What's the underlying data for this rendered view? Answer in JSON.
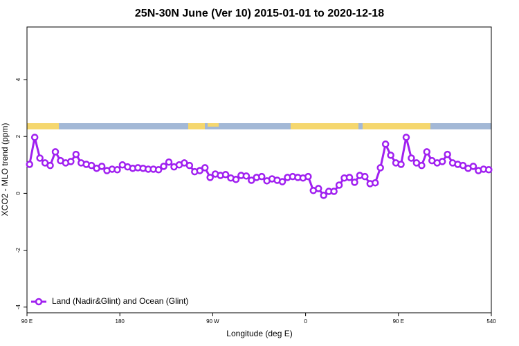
{
  "chart_data": {
    "type": "line",
    "title": "25N-30N June (Ver 10)   2015-01-01 to 2020-12-18",
    "x_label": "Longitude (deg E)",
    "y_label": "XCO2 - MLO trend (ppm)",
    "xlim": [
      90,
      540
    ],
    "ylim": [
      -4.2,
      5.85
    ],
    "xticks": [
      {
        "value": 90,
        "label": "90 E"
      },
      180,
      {
        "value": 270,
        "label": "90 W"
      },
      {
        "value": 360,
        "label": "0"
      },
      {
        "value": 450,
        "label": "90 E"
      },
      540
    ],
    "yticks": [
      -4,
      -2,
      0,
      2,
      4
    ],
    "legend_position": "bottom-left",
    "series": [
      {
        "name": "Land (Nadir&Glint) and Ocean (Glint)",
        "color": "#a020f0",
        "x": [
          92.5,
          97.5,
          102.5,
          107.5,
          112.5,
          117.5,
          122.5,
          127.5,
          132.5,
          137.5,
          142.5,
          147.5,
          152.5,
          157.5,
          162.5,
          167.5,
          172.5,
          177.5,
          182.5,
          187.5,
          192.5,
          197.5,
          202.5,
          207.5,
          212.5,
          217.5,
          222.5,
          227.5,
          232.5,
          237.5,
          242.5,
          247.5,
          252.5,
          257.5,
          262.5,
          267.5,
          272.5,
          277.5,
          282.5,
          287.5,
          292.5,
          297.5,
          302.5,
          307.5,
          312.5,
          317.5,
          322.5,
          327.5,
          332.5,
          337.5,
          342.5,
          347.5,
          352.5,
          357.5,
          362.5,
          367.5,
          372.5,
          377.5,
          382.5,
          387.5,
          392.5,
          397.5,
          402.5,
          407.5,
          412.5,
          417.5,
          422.5,
          427.5,
          432.5,
          437.5,
          442.5,
          447.5,
          452.5,
          457.5,
          462.5,
          467.5,
          472.5,
          477.5,
          482.5,
          487.5,
          492.5,
          497.5,
          502.5,
          507.5,
          512.5,
          517.5,
          522.5,
          527.5,
          532.5,
          537.5
        ],
        "values": [
          1.02,
          1.97,
          1.24,
          1.07,
          0.98,
          1.46,
          1.15,
          1.07,
          1.12,
          1.37,
          1.07,
          1.02,
          0.98,
          0.88,
          0.95,
          0.8,
          0.85,
          0.83,
          1.0,
          0.93,
          0.88,
          0.9,
          0.88,
          0.85,
          0.85,
          0.83,
          0.95,
          1.1,
          0.93,
          1.0,
          1.07,
          0.98,
          0.76,
          0.8,
          0.9,
          0.56,
          0.68,
          0.63,
          0.66,
          0.54,
          0.49,
          0.63,
          0.61,
          0.46,
          0.56,
          0.59,
          0.44,
          0.51,
          0.46,
          0.41,
          0.56,
          0.59,
          0.56,
          0.54,
          0.59,
          0.1,
          0.17,
          -0.07,
          0.07,
          0.07,
          0.29,
          0.54,
          0.56,
          0.39,
          0.63,
          0.59,
          0.34,
          0.37,
          0.9,
          1.73,
          1.34,
          1.07,
          1.02,
          1.97,
          1.24,
          1.07,
          0.98,
          1.46,
          1.15,
          1.07,
          1.12,
          1.37,
          1.07,
          1.02,
          0.98,
          0.88,
          0.95,
          0.8,
          0.85,
          0.83
        ]
      }
    ]
  }
}
